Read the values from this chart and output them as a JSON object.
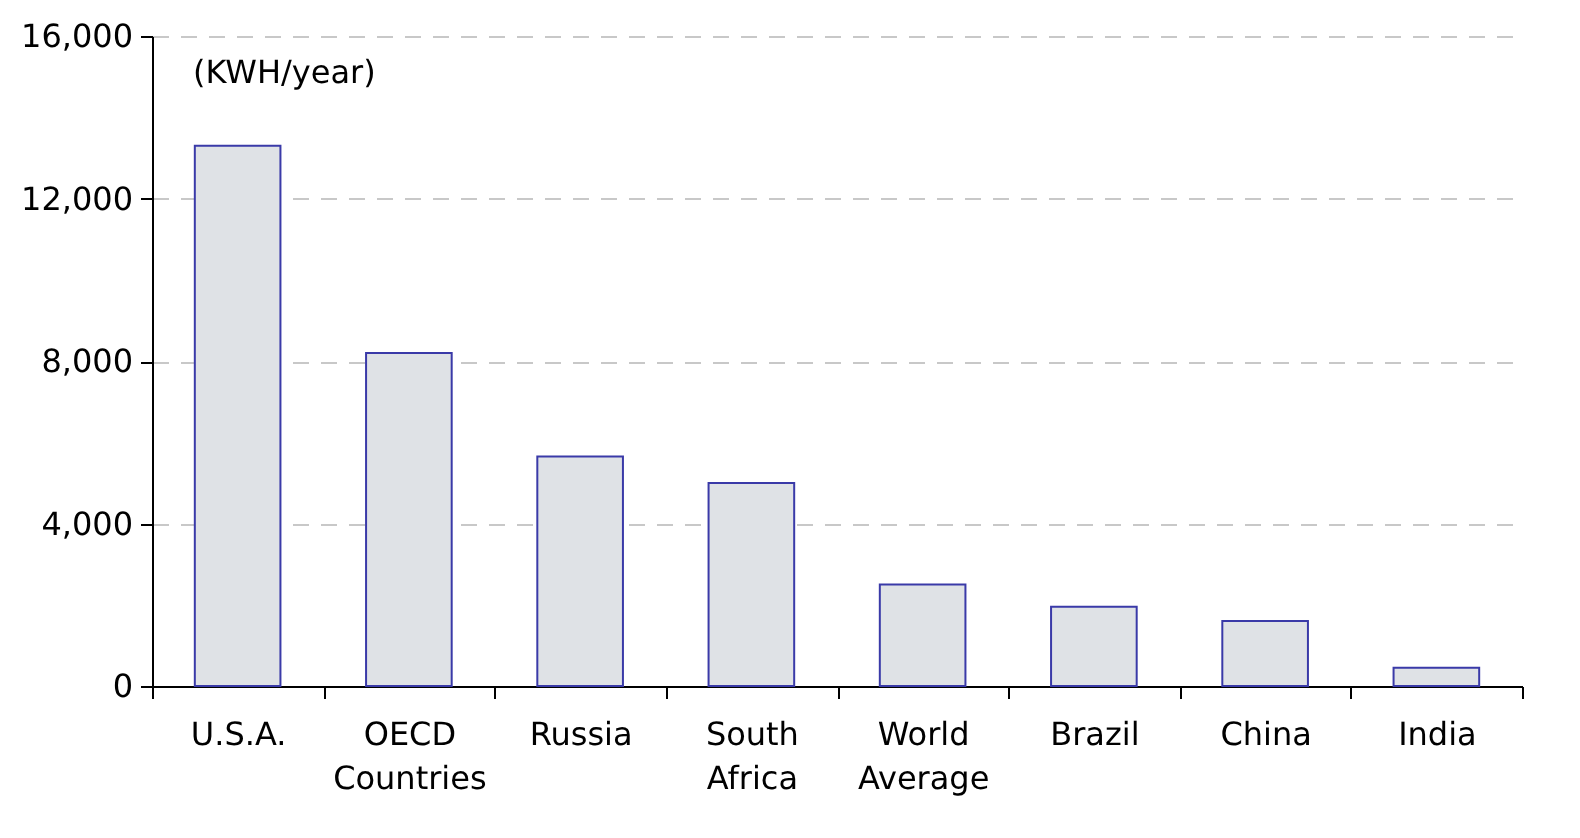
{
  "chart_data": {
    "type": "bar",
    "ylabel": "(KWH/year)",
    "categories": [
      "U.S.A.",
      "OECD Countries",
      "Russia",
      "South Africa",
      "World Average",
      "Brazil",
      "China",
      "India"
    ],
    "values": [
      13300,
      8200,
      5650,
      5000,
      2500,
      1950,
      1600,
      450
    ],
    "color": "#dfe2e6",
    "ylim": [
      0,
      16000
    ],
    "yticks": [
      0,
      {
        "value": 4000,
        "label": "4,000"
      },
      {
        "value": 8000,
        "label": "8,000"
      },
      {
        "value": 12000,
        "label": "12,000"
      },
      {
        "value": 16000,
        "label": "16,000"
      }
    ],
    "grid": "y"
  }
}
